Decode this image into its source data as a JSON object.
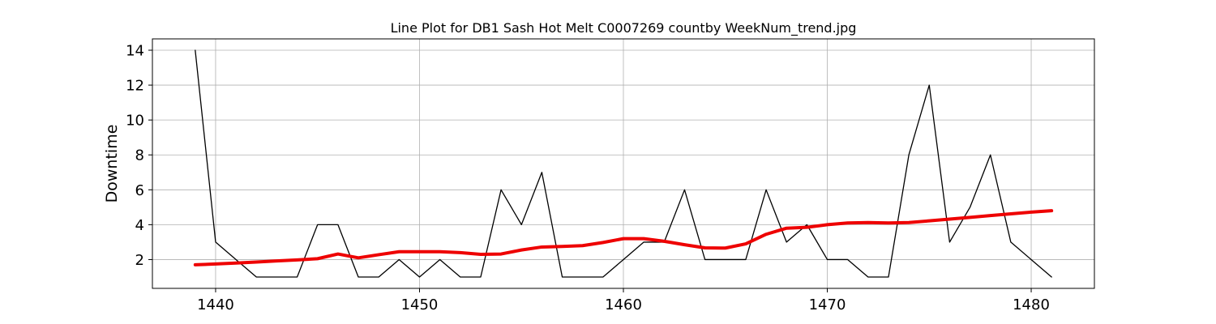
{
  "chart_data": {
    "type": "line",
    "title": "Line Plot for DB1 Sash Hot Melt C0007269 countby WeekNum_trend.jpg",
    "xlabel": "",
    "ylabel": "Downtime",
    "xlim": [
      1436.9,
      1483.1
    ],
    "ylim": [
      0.35,
      14.65
    ],
    "xticks": [
      1440,
      1450,
      1460,
      1470,
      1480
    ],
    "yticks": [
      2,
      4,
      6,
      8,
      10,
      12,
      14
    ],
    "grid": true,
    "x": [
      1439,
      1440,
      1441,
      1442,
      1443,
      1444,
      1445,
      1446,
      1447,
      1448,
      1449,
      1450,
      1451,
      1452,
      1453,
      1454,
      1455,
      1456,
      1457,
      1458,
      1459,
      1460,
      1461,
      1462,
      1463,
      1464,
      1465,
      1466,
      1467,
      1468,
      1469,
      1470,
      1471,
      1472,
      1473,
      1474,
      1475,
      1476,
      1477,
      1478,
      1479,
      1480,
      1481
    ],
    "series": [
      {
        "color": "#000000",
        "values": [
          14,
          3,
          2,
          1,
          1,
          1,
          4,
          4,
          1,
          1,
          2,
          1,
          2,
          1,
          1,
          6,
          4,
          7,
          1,
          1,
          1,
          2,
          3,
          3,
          6,
          2,
          2,
          2,
          6,
          3,
          4,
          2,
          2,
          1,
          1,
          8,
          12,
          3,
          5,
          8,
          3,
          2,
          1
        ]
      },
      {
        "color": "#ee0000",
        "values": [
          1.7,
          1.75,
          1.8,
          1.86,
          1.92,
          1.98,
          2.05,
          2.32,
          2.1,
          2.28,
          2.45,
          2.45,
          2.45,
          2.4,
          2.3,
          2.32,
          2.55,
          2.72,
          2.75,
          2.8,
          2.98,
          3.2,
          3.2,
          3.05,
          2.85,
          2.67,
          2.66,
          2.9,
          3.45,
          3.8,
          3.85,
          4.0,
          4.1,
          4.12,
          4.1,
          4.12,
          4.22,
          4.32,
          4.42,
          4.52,
          4.62,
          4.72,
          4.8
        ]
      }
    ]
  }
}
